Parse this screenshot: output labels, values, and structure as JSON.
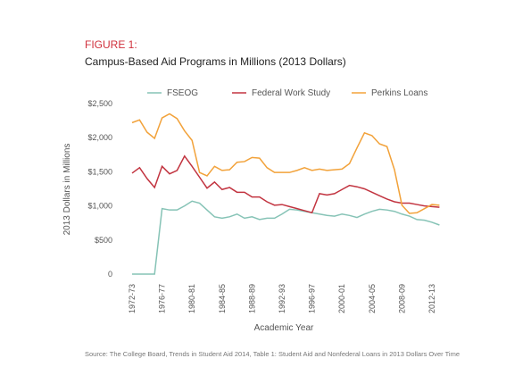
{
  "chart_data": {
    "type": "line",
    "figure_label": "FIGURE 1:",
    "title": "Campus-Based Aid Programs in Millions (2013 Dollars)",
    "x_label": "Academic Year",
    "y_label": "2013 Dollars in Millions",
    "source": "Source: The College Board, Trends in Student Aid 2014, Table 1: Student Aid and Nonfederal Loans in 2013 Dollars Over Time",
    "categories": [
      "1972-73",
      null,
      null,
      null,
      "1976-77",
      null,
      null,
      null,
      "1980-81",
      null,
      null,
      null,
      "1984-85",
      null,
      null,
      null,
      "1988-89",
      null,
      null,
      null,
      "1992-93",
      null,
      null,
      null,
      "1996-97",
      null,
      null,
      null,
      "2000-01",
      null,
      null,
      null,
      "2004-05",
      null,
      null,
      null,
      "2008-09",
      null,
      null,
      null,
      "2012-13",
      null
    ],
    "series": [
      {
        "name": "FSEOG",
        "color": "#86c3b6",
        "values": [
          0,
          0,
          0,
          0,
          960,
          940,
          940,
          1000,
          1070,
          1040,
          940,
          840,
          820,
          840,
          880,
          820,
          840,
          800,
          820,
          820,
          880,
          950,
          940,
          920,
          900,
          880,
          860,
          850,
          880,
          860,
          830,
          880,
          920,
          950,
          940,
          920,
          880,
          850,
          800,
          790,
          760,
          720
        ]
      },
      {
        "name": "Federal Work Study",
        "color": "#c23440",
        "values": [
          1480,
          1560,
          1400,
          1270,
          1580,
          1470,
          1520,
          1730,
          1580,
          1420,
          1260,
          1350,
          1240,
          1270,
          1200,
          1200,
          1130,
          1130,
          1060,
          1010,
          1020,
          990,
          960,
          930,
          900,
          1180,
          1160,
          1180,
          1240,
          1300,
          1280,
          1250,
          1200,
          1150,
          1100,
          1060,
          1040,
          1040,
          1020,
          1000,
          990,
          980
        ]
      },
      {
        "name": "Perkins Loans",
        "color": "#f2a23a",
        "values": [
          2220,
          2260,
          2080,
          1990,
          2290,
          2350,
          2280,
          2100,
          1960,
          1490,
          1440,
          1580,
          1520,
          1530,
          1640,
          1650,
          1710,
          1700,
          1560,
          1490,
          1490,
          1490,
          1520,
          1560,
          1520,
          1540,
          1520,
          1530,
          1540,
          1620,
          1850,
          2070,
          2030,
          1910,
          1870,
          1530,
          1010,
          890,
          900,
          960,
          1020,
          1010
        ]
      }
    ],
    "ylim": [
      0,
      2500
    ],
    "yticks": [
      0,
      {
        "value": 500,
        "label": "$500"
      },
      {
        "value": 1000,
        "label": "$1,000"
      },
      {
        "value": 1500,
        "label": "$1,500"
      },
      {
        "value": 2000,
        "label": "$2,000"
      },
      {
        "value": 2500,
        "label": "$2,500"
      }
    ],
    "grid": false,
    "legend": "top"
  }
}
